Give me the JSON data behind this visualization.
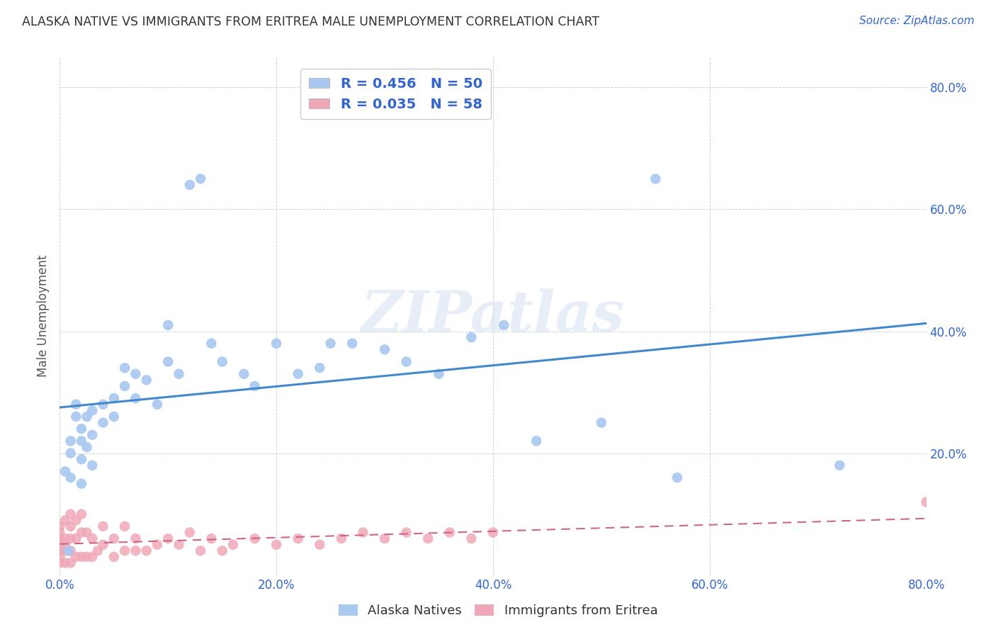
{
  "title": "ALASKA NATIVE VS IMMIGRANTS FROM ERITREA MALE UNEMPLOYMENT CORRELATION CHART",
  "source": "Source: ZipAtlas.com",
  "xlabel": "",
  "ylabel": "Male Unemployment",
  "xlim": [
    0.0,
    0.8
  ],
  "ylim": [
    0.0,
    0.85
  ],
  "xticks": [
    0.0,
    0.2,
    0.4,
    0.6,
    0.8
  ],
  "yticks": [
    0.0,
    0.2,
    0.4,
    0.6,
    0.8
  ],
  "xticklabels": [
    "0.0%",
    "20.0%",
    "40.0%",
    "60.0%",
    "80.0%"
  ],
  "yticklabels": [
    "",
    "20.0%",
    "40.0%",
    "60.0%",
    "80.0%"
  ],
  "alaska_color": "#a8c8f0",
  "eritrea_color": "#f0a8b8",
  "line_alaska_color": "#4488cc",
  "line_eritrea_color": "#cc6688",
  "legend_text_color": "#3366cc",
  "R_alaska": 0.456,
  "N_alaska": 50,
  "R_eritrea": 0.035,
  "N_eritrea": 58,
  "alaska_x": [
    0.005,
    0.01,
    0.01,
    0.01,
    0.015,
    0.015,
    0.02,
    0.02,
    0.02,
    0.02,
    0.025,
    0.025,
    0.03,
    0.03,
    0.03,
    0.04,
    0.04,
    0.05,
    0.05,
    0.06,
    0.06,
    0.07,
    0.07,
    0.08,
    0.09,
    0.1,
    0.1,
    0.11,
    0.12,
    0.13,
    0.14,
    0.15,
    0.17,
    0.18,
    0.2,
    0.22,
    0.24,
    0.25,
    0.27,
    0.3,
    0.32,
    0.35,
    0.38,
    0.41,
    0.44,
    0.5,
    0.55,
    0.57,
    0.72,
    0.008
  ],
  "alaska_y": [
    0.17,
    0.2,
    0.16,
    0.22,
    0.26,
    0.28,
    0.22,
    0.24,
    0.19,
    0.15,
    0.21,
    0.26,
    0.18,
    0.23,
    0.27,
    0.25,
    0.28,
    0.26,
    0.29,
    0.31,
    0.34,
    0.29,
    0.33,
    0.32,
    0.28,
    0.41,
    0.35,
    0.33,
    0.64,
    0.65,
    0.38,
    0.35,
    0.33,
    0.31,
    0.38,
    0.33,
    0.34,
    0.38,
    0.38,
    0.37,
    0.35,
    0.33,
    0.39,
    0.41,
    0.22,
    0.25,
    0.65,
    0.16,
    0.18,
    0.04
  ],
  "eritrea_x": [
    0.0,
    0.0,
    0.0,
    0.0,
    0.0,
    0.0,
    0.0,
    0.005,
    0.005,
    0.005,
    0.005,
    0.005,
    0.01,
    0.01,
    0.01,
    0.01,
    0.01,
    0.015,
    0.015,
    0.015,
    0.02,
    0.02,
    0.02,
    0.025,
    0.025,
    0.03,
    0.03,
    0.035,
    0.04,
    0.04,
    0.05,
    0.05,
    0.06,
    0.06,
    0.07,
    0.07,
    0.08,
    0.09,
    0.1,
    0.11,
    0.12,
    0.13,
    0.14,
    0.15,
    0.16,
    0.18,
    0.2,
    0.22,
    0.24,
    0.26,
    0.28,
    0.3,
    0.32,
    0.34,
    0.36,
    0.38,
    0.4,
    0.8
  ],
  "eritrea_y": [
    0.02,
    0.03,
    0.04,
    0.05,
    0.06,
    0.07,
    0.08,
    0.02,
    0.04,
    0.05,
    0.06,
    0.09,
    0.02,
    0.04,
    0.06,
    0.08,
    0.1,
    0.03,
    0.06,
    0.09,
    0.03,
    0.07,
    0.1,
    0.03,
    0.07,
    0.03,
    0.06,
    0.04,
    0.05,
    0.08,
    0.03,
    0.06,
    0.04,
    0.08,
    0.04,
    0.06,
    0.04,
    0.05,
    0.06,
    0.05,
    0.07,
    0.04,
    0.06,
    0.04,
    0.05,
    0.06,
    0.05,
    0.06,
    0.05,
    0.06,
    0.07,
    0.06,
    0.07,
    0.06,
    0.07,
    0.06,
    0.07,
    0.12
  ],
  "watermark": "ZIPatlas",
  "background_color": "#ffffff",
  "grid_color": "#cccccc"
}
